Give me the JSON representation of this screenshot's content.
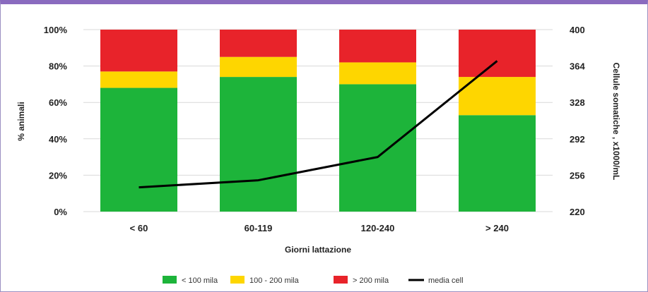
{
  "chart_data": {
    "type": "bar",
    "stacked": true,
    "categories": [
      "< 60",
      "60-119",
      "120-240",
      "> 240"
    ],
    "series": [
      {
        "name": "< 100 mila",
        "values": [
          68,
          74,
          70,
          53
        ],
        "color": "#1db43a"
      },
      {
        "name": "100 - 200 mila",
        "values": [
          9,
          11,
          12,
          21
        ],
        "color": "#fed600"
      },
      {
        "name": "> 200 mila",
        "values": [
          23,
          15,
          18,
          26
        ],
        "color": "#e8232a"
      }
    ],
    "line_series": {
      "name": "media cell",
      "values": [
        244,
        251,
        274,
        369
      ],
      "color": "#000000",
      "axis": "right"
    },
    "xlabel": "Giorni lattazione",
    "ylabel": "% animali",
    "ylabel_right": "Cellule somatiche , x1000/mL",
    "ylim": [
      0,
      100
    ],
    "ylim_right": [
      220,
      400
    ],
    "yticks": [
      "0%",
      "20%",
      "40%",
      "60%",
      "80%",
      "100%"
    ],
    "yticks_right": [
      "220",
      "256",
      "292",
      "328",
      "364",
      "400"
    ],
    "grid": true,
    "legend_position": "bottom"
  }
}
